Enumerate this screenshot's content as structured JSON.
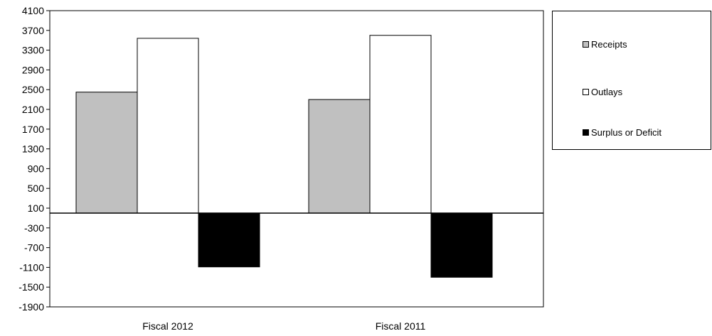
{
  "chart_data": {
    "type": "bar",
    "categories": [
      "Fiscal 2012",
      "Fiscal 2011"
    ],
    "series": [
      {
        "name": "Receipts",
        "values": [
          2450,
          2300
        ],
        "color": "#c0c0c0"
      },
      {
        "name": "Outlays",
        "values": [
          3540,
          3600
        ],
        "color": "#ffffff"
      },
      {
        "name": "Surplus or Deficit",
        "values": [
          -1090,
          -1300
        ],
        "color": "#000000"
      }
    ],
    "ylim": [
      -1900,
      4100
    ],
    "yticks": [
      4100,
      3700,
      3300,
      2900,
      2500,
      2100,
      1700,
      1300,
      900,
      500,
      100,
      -300,
      -700,
      -1100,
      -1500,
      -1900
    ],
    "title": "",
    "xlabel": "",
    "ylabel": "",
    "legend_position": "top-right",
    "grid": false
  }
}
